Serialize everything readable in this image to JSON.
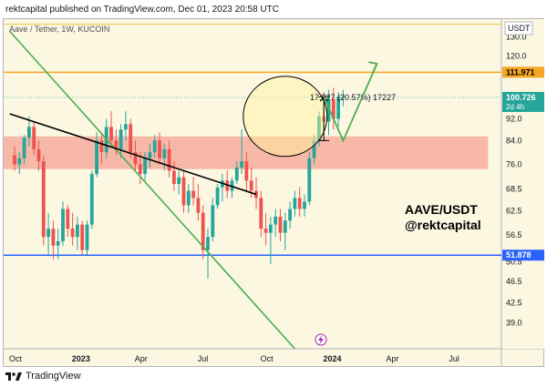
{
  "header": {
    "publisher": "rektcapital published on TradingView.com, Dec 01, 2023 20:58 UTC"
  },
  "symbol_info": "Aave / Tether, 1W, KUCOIN",
  "currency": "USDT",
  "footer": {
    "brand": "TradingView",
    "logo_icon": "tradingview-logo-icon"
  },
  "annotations": {
    "measure_text": "17.227 (20.57%) 17227",
    "title_line1": "AAVE/USDT",
    "title_line2": "@rektcapital",
    "countdown": "2d 4h",
    "flash_icon": "lightning-icon"
  },
  "colors": {
    "up": "#26a69a",
    "down": "#ef5350",
    "zone": "#f8a79a",
    "resistance": "#f5a623",
    "support": "#2962ff",
    "trend_green": "#4caf50",
    "trend_black": "#000000",
    "last_price_badge": "#26a69a"
  },
  "chart_data": {
    "type": "candlestick",
    "title": "",
    "xlabel": "",
    "ylabel": "",
    "ylim": [
      35,
      140
    ],
    "x_ticks": [
      "Oct",
      "2023",
      "Apr",
      "Jul",
      "Oct",
      "2024",
      "Apr",
      "Jul"
    ],
    "y_ticks": [
      130.0,
      120.0,
      111.971,
      100.726,
      92.0,
      84.0,
      76.0,
      68.5,
      62.5,
      56.5,
      51.878,
      50.5,
      46.5,
      42.5,
      39.0
    ],
    "price_labels": {
      "resistance": "111.971",
      "last_price": "100.726",
      "support": "51.878"
    },
    "levels": {
      "resistance": 111.971,
      "support": 51.878,
      "last_price": 100.726
    },
    "zone": {
      "low": 74.5,
      "high": 85.5,
      "from_week": 0,
      "to_week": 98
    },
    "candles": [
      {
        "o": 79,
        "h": 82,
        "l": 74,
        "c": 76
      },
      {
        "o": 76,
        "h": 80,
        "l": 73,
        "c": 78
      },
      {
        "o": 78,
        "h": 86,
        "l": 76,
        "c": 85
      },
      {
        "o": 85,
        "h": 93,
        "l": 82,
        "c": 89
      },
      {
        "o": 89,
        "h": 91,
        "l": 79,
        "c": 81
      },
      {
        "o": 81,
        "h": 84,
        "l": 74,
        "c": 77
      },
      {
        "o": 77,
        "h": 79,
        "l": 54,
        "c": 56
      },
      {
        "o": 56,
        "h": 62,
        "l": 52,
        "c": 58
      },
      {
        "o": 58,
        "h": 60,
        "l": 51,
        "c": 54
      },
      {
        "o": 54,
        "h": 58,
        "l": 51,
        "c": 55
      },
      {
        "o": 55,
        "h": 65,
        "l": 54,
        "c": 63
      },
      {
        "o": 63,
        "h": 64,
        "l": 56,
        "c": 58
      },
      {
        "o": 58,
        "h": 62,
        "l": 54,
        "c": 56
      },
      {
        "o": 56,
        "h": 61,
        "l": 53,
        "c": 59
      },
      {
        "o": 59,
        "h": 60,
        "l": 52,
        "c": 53
      },
      {
        "o": 53,
        "h": 60,
        "l": 52,
        "c": 59
      },
      {
        "o": 59,
        "h": 74,
        "l": 58,
        "c": 73
      },
      {
        "o": 73,
        "h": 87,
        "l": 72,
        "c": 84
      },
      {
        "o": 84,
        "h": 87,
        "l": 76,
        "c": 80
      },
      {
        "o": 80,
        "h": 92,
        "l": 78,
        "c": 89
      },
      {
        "o": 89,
        "h": 95,
        "l": 82,
        "c": 84
      },
      {
        "o": 84,
        "h": 88,
        "l": 79,
        "c": 81
      },
      {
        "o": 81,
        "h": 90,
        "l": 78,
        "c": 88
      },
      {
        "o": 88,
        "h": 95,
        "l": 84,
        "c": 90
      },
      {
        "o": 90,
        "h": 92,
        "l": 78,
        "c": 80
      },
      {
        "o": 80,
        "h": 84,
        "l": 74,
        "c": 76
      },
      {
        "o": 76,
        "h": 80,
        "l": 70,
        "c": 73
      },
      {
        "o": 73,
        "h": 80,
        "l": 71,
        "c": 78
      },
      {
        "o": 78,
        "h": 83,
        "l": 75,
        "c": 80
      },
      {
        "o": 80,
        "h": 86,
        "l": 78,
        "c": 84
      },
      {
        "o": 84,
        "h": 87,
        "l": 76,
        "c": 78
      },
      {
        "o": 78,
        "h": 83,
        "l": 74,
        "c": 81
      },
      {
        "o": 81,
        "h": 84,
        "l": 72,
        "c": 74
      },
      {
        "o": 74,
        "h": 77,
        "l": 68,
        "c": 70
      },
      {
        "o": 70,
        "h": 74,
        "l": 67,
        "c": 72
      },
      {
        "o": 72,
        "h": 74,
        "l": 62,
        "c": 64
      },
      {
        "o": 64,
        "h": 70,
        "l": 62,
        "c": 68
      },
      {
        "o": 68,
        "h": 72,
        "l": 64,
        "c": 66
      },
      {
        "o": 66,
        "h": 70,
        "l": 60,
        "c": 62
      },
      {
        "o": 62,
        "h": 64,
        "l": 51,
        "c": 53
      },
      {
        "o": 53,
        "h": 58,
        "l": 47,
        "c": 56
      },
      {
        "o": 56,
        "h": 66,
        "l": 55,
        "c": 64
      },
      {
        "o": 64,
        "h": 70,
        "l": 63,
        "c": 69
      },
      {
        "o": 69,
        "h": 73,
        "l": 65,
        "c": 71
      },
      {
        "o": 71,
        "h": 74,
        "l": 66,
        "c": 68
      },
      {
        "o": 68,
        "h": 72,
        "l": 66,
        "c": 71
      },
      {
        "o": 71,
        "h": 77,
        "l": 70,
        "c": 75
      },
      {
        "o": 75,
        "h": 88,
        "l": 73,
        "c": 77
      },
      {
        "o": 77,
        "h": 80,
        "l": 68,
        "c": 71
      },
      {
        "o": 71,
        "h": 75,
        "l": 66,
        "c": 68
      },
      {
        "o": 68,
        "h": 72,
        "l": 63,
        "c": 66
      },
      {
        "o": 66,
        "h": 68,
        "l": 56,
        "c": 58
      },
      {
        "o": 58,
        "h": 62,
        "l": 54,
        "c": 57
      },
      {
        "o": 57,
        "h": 61,
        "l": 50,
        "c": 59
      },
      {
        "o": 59,
        "h": 63,
        "l": 56,
        "c": 61
      },
      {
        "o": 61,
        "h": 63,
        "l": 55,
        "c": 57
      },
      {
        "o": 57,
        "h": 62,
        "l": 53,
        "c": 60
      },
      {
        "o": 60,
        "h": 65,
        "l": 58,
        "c": 63
      },
      {
        "o": 63,
        "h": 68,
        "l": 61,
        "c": 66
      },
      {
        "o": 66,
        "h": 69,
        "l": 61,
        "c": 63
      },
      {
        "o": 63,
        "h": 67,
        "l": 61,
        "c": 65
      },
      {
        "o": 65,
        "h": 80,
        "l": 64,
        "c": 78
      },
      {
        "o": 78,
        "h": 86,
        "l": 76,
        "c": 84
      },
      {
        "o": 84,
        "h": 95,
        "l": 82,
        "c": 93
      },
      {
        "o": 93,
        "h": 103,
        "l": 88,
        "c": 91
      },
      {
        "o": 91,
        "h": 104,
        "l": 86,
        "c": 100
      },
      {
        "o": 100,
        "h": 105,
        "l": 88,
        "c": 92
      },
      {
        "o": 92,
        "h": 103,
        "l": 89,
        "c": 101
      },
      {
        "o": 101,
        "h": 104,
        "l": 97,
        "c": 101
      }
    ],
    "x_tick_weeks": [
      0,
      13,
      26,
      39,
      52,
      65,
      78,
      91
    ],
    "trend_green": [
      [
        -1,
        133
      ],
      [
        58,
        35
      ]
    ],
    "trend_black": [
      [
        -1,
        94
      ],
      [
        50,
        67
      ]
    ],
    "projection_arrow": [
      [
        64,
        101
      ],
      [
        68,
        84
      ],
      [
        75,
        116
      ]
    ],
    "measure": {
      "week": 64,
      "from": 84,
      "to": 101
    },
    "circle_center": [
      56,
      93
    ]
  }
}
